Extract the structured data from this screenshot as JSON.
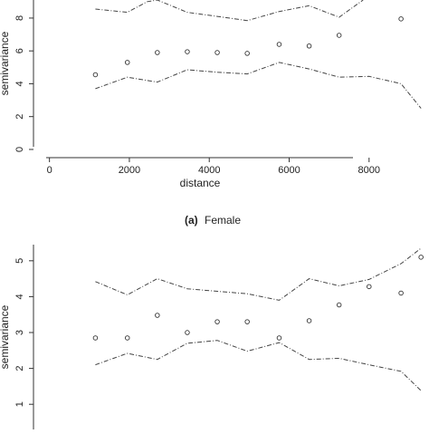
{
  "chart_data": [
    {
      "type": "scatter",
      "caption_tag": "(a)",
      "caption_text": "Female",
      "xlabel": "distance",
      "ylabel": "semivariance",
      "xlim": [
        -400,
        9500
      ],
      "ylim": [
        -0.5,
        9.1
      ],
      "x_ticks": [
        0,
        2000,
        4000,
        6000,
        8000
      ],
      "y_ticks": [
        0,
        2,
        4,
        6,
        8
      ],
      "points": {
        "x": [
          1150,
          1950,
          2700,
          3450,
          4200,
          4950,
          5750,
          6500,
          7250,
          8800
        ],
        "y": [
          4.55,
          5.3,
          5.9,
          5.95,
          5.9,
          5.85,
          6.4,
          6.3,
          6.95,
          7.95
        ]
      },
      "envelope_lower": {
        "x": [
          1150,
          1950,
          2700,
          3450,
          4200,
          4950,
          5750,
          6500,
          7250,
          8000,
          8800,
          9300
        ],
        "y": [
          3.7,
          4.4,
          4.1,
          4.85,
          4.7,
          4.6,
          5.3,
          4.9,
          4.4,
          4.45,
          4.0,
          2.5
        ]
      },
      "envelope_upper": {
        "x": [
          1150,
          1950,
          2450,
          2700,
          3450,
          4200,
          4950,
          5750,
          6500,
          7250,
          7850
        ],
        "y": [
          8.55,
          8.35,
          9.0,
          9.1,
          8.35,
          8.1,
          7.85,
          8.4,
          8.75,
          8.05,
          9.1
        ]
      }
    },
    {
      "type": "scatter",
      "xlabel": "",
      "ylabel": "semivariance",
      "xlim": [
        -400,
        9500
      ],
      "ylim": [
        0.5,
        5.45
      ],
      "x_ticks": [],
      "y_ticks": [
        1,
        2,
        3,
        4,
        5
      ],
      "points": {
        "x": [
          1150,
          1950,
          2700,
          3450,
          4200,
          4950,
          5750,
          6500,
          7250,
          8000,
          8800,
          9300
        ],
        "y": [
          2.85,
          2.85,
          3.48,
          3.0,
          3.3,
          3.3,
          2.85,
          3.33,
          3.77,
          4.28,
          4.1,
          5.1
        ]
      },
      "envelope_lower": {
        "x": [
          1150,
          1950,
          2700,
          3450,
          4200,
          4950,
          5750,
          6500,
          7250,
          8000,
          8800,
          9300
        ],
        "y": [
          2.1,
          2.42,
          2.25,
          2.7,
          2.78,
          2.48,
          2.72,
          2.25,
          2.28,
          2.1,
          1.92,
          1.38
        ]
      },
      "envelope_upper": {
        "x": [
          1150,
          1950,
          2700,
          3450,
          4200,
          4950,
          5750,
          6500,
          7250,
          8000,
          8800,
          9300
        ],
        "y": [
          4.42,
          4.05,
          4.5,
          4.22,
          4.15,
          4.08,
          3.9,
          4.5,
          4.3,
          4.48,
          4.92,
          5.35
        ]
      }
    }
  ]
}
